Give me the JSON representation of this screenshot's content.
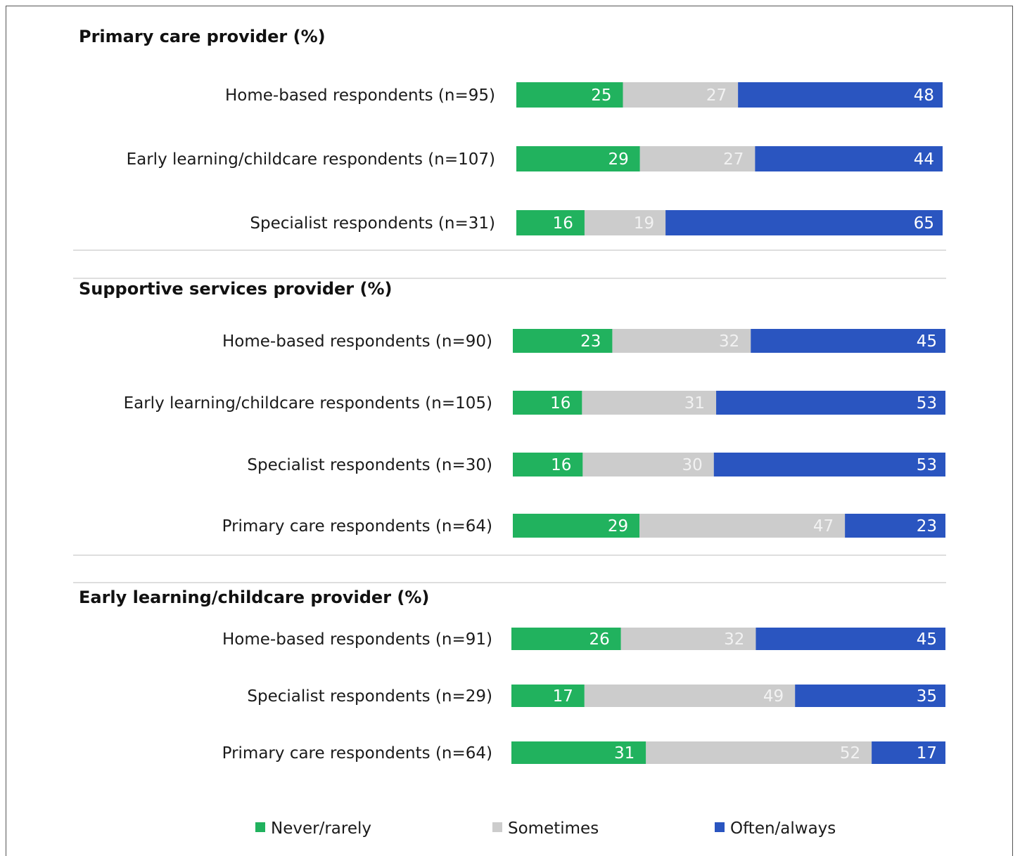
{
  "chart_data": {
    "type": "bar",
    "orientation": "horizontal",
    "stacked": true,
    "legend_position": "bottom",
    "grid": false,
    "xlim": [
      0,
      100
    ],
    "colors": {
      "Never/rarely": "#21b25e",
      "Sometimes": "#cccccc",
      "Often/always": "#2a55c0"
    },
    "legend": [
      "Never/rarely",
      "Sometimes",
      "Often/always"
    ],
    "groups": [
      {
        "title": "Primary care provider (%)",
        "rows": [
          {
            "label": "Home-based respondents (n=95)",
            "values": [
              25,
              27,
              48
            ]
          },
          {
            "label": "Early learning/childcare respondents (n=107)",
            "values": [
              29,
              27,
              44
            ]
          },
          {
            "label": "Specialist respondents (n=31)",
            "values": [
              16,
              19,
              65
            ]
          }
        ]
      },
      {
        "title": "Supportive services provider (%)",
        "rows": [
          {
            "label": "Home-based respondents (n=90)",
            "values": [
              23,
              32,
              45
            ]
          },
          {
            "label": "Early learning/childcare respondents (n=105)",
            "values": [
              16,
              31,
              53
            ]
          },
          {
            "label": "Specialist respondents (n=30)",
            "values": [
              16,
              30,
              53
            ]
          },
          {
            "label": "Primary care respondents (n=64)",
            "values": [
              29,
              47,
              23
            ]
          }
        ]
      },
      {
        "title": "Early learning/childcare provider (%)",
        "rows": [
          {
            "label": "Home-based respondents (n=91)",
            "values": [
              26,
              32,
              45
            ]
          },
          {
            "label": "Specialist respondents (n=29)",
            "values": [
              17,
              49,
              35
            ]
          },
          {
            "label": "Primary care respondents (n=64)",
            "values": [
              31,
              52,
              17
            ]
          }
        ]
      }
    ]
  }
}
